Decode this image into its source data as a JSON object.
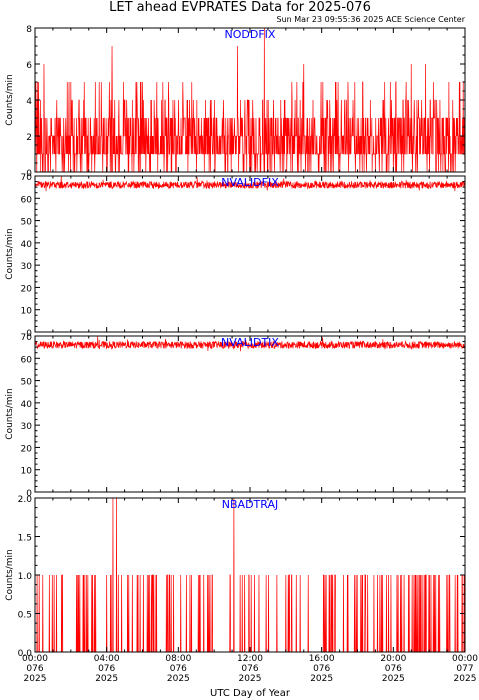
{
  "title": "LET ahead EVPRATES Data for 2025-076",
  "timestamp": "Sun Mar 23 09:55:36 2025 ACE Science Center",
  "xlabel": "UTC Day of Year",
  "colors": {
    "trace": "#ff0000",
    "panel_label": "#0000ff",
    "axes": "#000000"
  },
  "x_ticks": [
    {
      "time": "00:00",
      "doy": "076",
      "year": "2025"
    },
    {
      "time": "04:00",
      "doy": "076",
      "year": "2025"
    },
    {
      "time": "08:00",
      "doy": "076",
      "year": "2025"
    },
    {
      "time": "12:00",
      "doy": "076",
      "year": "2025"
    },
    {
      "time": "16:00",
      "doy": "076",
      "year": "2025"
    },
    {
      "time": "20:00",
      "doy": "076",
      "year": "2025"
    },
    {
      "time": "00:00",
      "doy": "077",
      "year": "2025"
    }
  ],
  "chart_data": [
    {
      "type": "line",
      "label": "NODDFIX",
      "ylabel": "Counts/min",
      "ylim": [
        0,
        8
      ],
      "yticks": [
        "0",
        "2",
        "4",
        "6",
        "8"
      ],
      "xlim_hours": [
        0,
        24
      ],
      "x_hours": [
        0.5,
        2.0,
        4.3,
        6.8,
        11.3,
        12.8,
        15.0,
        18.3,
        21.0,
        21.8
      ],
      "y": [
        6,
        5,
        7,
        5,
        7,
        8,
        6,
        5,
        6,
        6
      ],
      "baseline_range": [
        0,
        5
      ]
    },
    {
      "type": "line",
      "label": "NVALIDFIX",
      "ylabel": "Counts/min",
      "ylim": [
        0,
        70
      ],
      "yticks": [
        "0",
        "10",
        "20",
        "30",
        "40",
        "50",
        "60",
        "70"
      ],
      "xlim_hours": [
        0,
        24
      ],
      "typical_value": 66,
      "range": [
        63,
        70
      ]
    },
    {
      "type": "line",
      "label": "NVALIDTIX",
      "ylabel": "Counts/min",
      "ylim": [
        0,
        70
      ],
      "yticks": [
        "0",
        "10",
        "20",
        "30",
        "40",
        "50",
        "60",
        "70"
      ],
      "xlim_hours": [
        0,
        24
      ],
      "typical_value": 66,
      "range": [
        63,
        70
      ]
    },
    {
      "type": "line",
      "label": "NBADTRAJ",
      "ylabel": "Counts/min",
      "ylim": [
        0,
        2
      ],
      "yticks": [
        "0.0",
        "0.5",
        "1.0",
        "1.5",
        "2.0"
      ],
      "xlim_hours": [
        0,
        24
      ],
      "x_hours": [
        4.35,
        4.55,
        11.1
      ],
      "y": [
        2,
        2,
        2
      ],
      "baseline_range": [
        0,
        1
      ]
    }
  ]
}
